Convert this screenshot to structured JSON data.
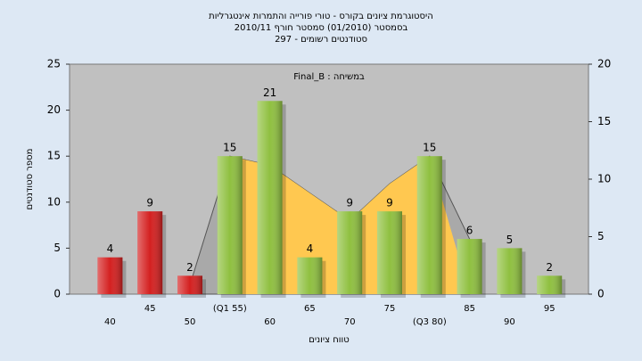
{
  "chart_data": {
    "type": "bar",
    "title": "היסטוגרמת ציונים בקורס - טורי פורייה והתמרות אינטגרליות",
    "subtitle": "בסמסטר (01/2010) סמסטר חורף 2010/11",
    "subtitle2": "סטודנטים רשומים - 297",
    "annotation": "במשיחה : Final_B",
    "x_label": "טווח ציונים",
    "y_label": "מספר סטודנטים",
    "categories": [
      "40",
      "45",
      "50",
      "(Q1 55)",
      "60",
      "65",
      "70",
      "75",
      "(Q3 80)",
      "85",
      "90",
      "95"
    ],
    "series": [
      {
        "values": [
          4,
          9,
          2,
          15,
          21,
          4,
          9,
          9,
          15,
          6,
          5,
          2
        ],
        "colors": [
          "#d42020",
          "#d42020",
          "#d42020",
          "#8fc040",
          "#8fc040",
          "#8fc040",
          "#8fc040",
          "#8fc040",
          "#8fc040",
          "#8fc040",
          "#8fc040",
          "#8fc040"
        ]
      }
    ],
    "areas": [
      {
        "color": "#a9a9a9",
        "values": [
          null,
          null,
          1,
          15,
          14,
          11,
          8,
          12,
          15,
          6,
          null,
          null
        ]
      },
      {
        "color": "#ffc850",
        "values": [
          null,
          null,
          null,
          15,
          14,
          11,
          8,
          12,
          15,
          0,
          null,
          null
        ]
      }
    ],
    "ylim": [
      0,
      25
    ],
    "yticks": [
      0,
      5,
      10,
      15,
      20,
      25
    ],
    "y2lim": [
      0,
      20
    ],
    "y2ticks": [
      0,
      5,
      10,
      15,
      20
    ],
    "grid": false
  }
}
